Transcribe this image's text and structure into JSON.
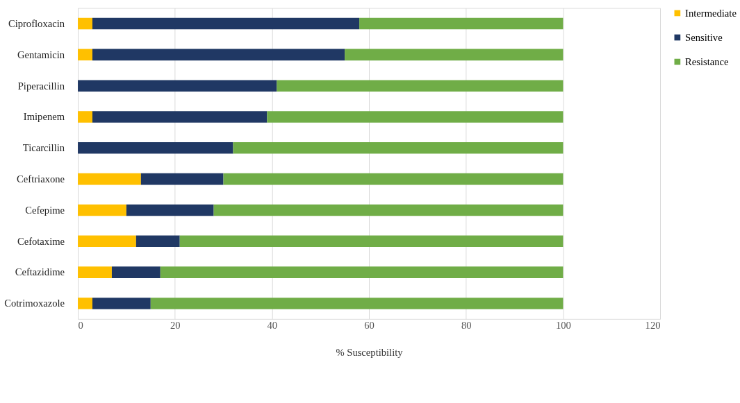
{
  "chart_data": {
    "type": "bar",
    "orientation": "horizontal",
    "stacked": true,
    "xlabel": "% Susceptibility",
    "categories": [
      "Ciprofloxacin",
      "Gentamicin",
      "Piperacillin",
      "Imipenem",
      "Ticarcillin",
      "Ceftriaxone",
      "Cefepime",
      "Cefotaxime",
      "Ceftazidime",
      "Cotrimoxazole"
    ],
    "series": [
      {
        "name": "Intermediate",
        "color": "#ffc000",
        "values": [
          3,
          3,
          0,
          3,
          0,
          13,
          10,
          12,
          7,
          3
        ]
      },
      {
        "name": "Sensitive",
        "color": "#203864",
        "values": [
          55,
          52,
          41,
          36,
          32,
          17,
          18,
          9,
          10,
          12
        ]
      },
      {
        "name": "Resistance",
        "color": "#70ad47",
        "values": [
          42,
          45,
          59,
          61,
          68,
          70,
          72,
          79,
          83,
          85
        ]
      }
    ],
    "xlim": [
      0,
      120
    ],
    "xticks": [
      0,
      20,
      40,
      60,
      80,
      100,
      120
    ],
    "grid": "x",
    "legend": "top right"
  }
}
